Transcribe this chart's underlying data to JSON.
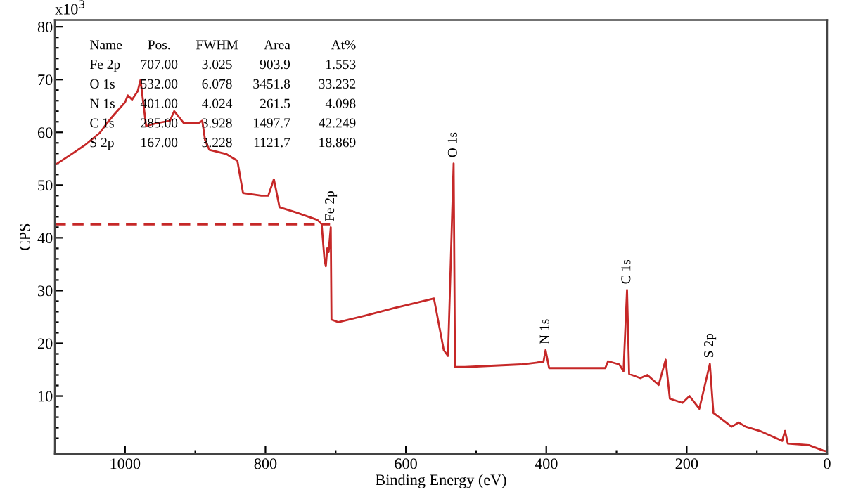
{
  "chart_data": {
    "type": "line",
    "xlabel": "Binding Energy (eV)",
    "ylabel": "CPS",
    "xlim": [
      1100,
      0
    ],
    "xticks": [
      1000,
      800,
      600,
      400,
      200,
      0
    ],
    "ylim": [
      -1,
      81.3
    ],
    "yticks": [
      10,
      20,
      30,
      40,
      50,
      60,
      70,
      80
    ],
    "grid": false,
    "legend": false,
    "marker": "none",
    "series": [
      {
        "color": "#c62828",
        "line_style": "solid",
        "x": [
          1100,
          1076,
          1056,
          1036,
          1026,
          1016,
          1000,
          996,
          990,
          982,
          978,
          970,
          956,
          936,
          930,
          916,
          896,
          890,
          886,
          880,
          856,
          840,
          832,
          806,
          796,
          788,
          780,
          756,
          726,
          720,
          716,
          714,
          712,
          710,
          707,
          706,
          696,
          656,
          616,
          600,
          560,
          546,
          540,
          532,
          530,
          516,
          436,
          404,
          401,
          396,
          316,
          312,
          296,
          290,
          285,
          282,
          266,
          256,
          240,
          230,
          224,
          206,
          196,
          182,
          167,
          162,
          136,
          126,
          116,
          96,
          64,
          60,
          56,
          26,
          6,
          0
        ],
        "values": [
          53.8,
          55.9,
          57.7,
          59.9,
          61.7,
          63.3,
          65.7,
          67,
          66.2,
          67.8,
          69.9,
          61.2,
          61.7,
          62.2,
          64,
          61.7,
          61.7,
          62.2,
          58.5,
          56.7,
          55.9,
          54.6,
          48.5,
          48,
          48,
          51.1,
          45.8,
          44.8,
          43.4,
          42.6,
          36,
          34.6,
          38,
          37.3,
          42,
          24.5,
          24,
          25.3,
          26.7,
          27.2,
          28.5,
          18.7,
          17.6,
          54.1,
          15.5,
          15.5,
          16,
          16.5,
          18.7,
          15.3,
          15.3,
          16.6,
          16,
          14.7,
          30.1,
          14.2,
          13.4,
          14,
          12.1,
          16.9,
          9.5,
          8.7,
          10,
          7.6,
          16.1,
          6.8,
          4.2,
          5,
          4.2,
          3.4,
          1.5,
          3.4,
          1,
          0.7,
          -0.3,
          -0.5
        ]
      },
      {
        "color": "#c62828",
        "line_style": "dashed",
        "x": [
          1100,
          708
        ],
        "values": [
          42.6,
          42.6
        ]
      }
    ],
    "annotations": [
      "x10$^{3}$",
      "Name",
      "Pos.",
      "FWHM",
      "Area",
      "At%",
      "Fe 2p",
      "707.00",
      "3.025",
      "903.9",
      "1.553",
      "O 1s",
      "532.00",
      "6.078",
      "3451.8",
      "33.232",
      "N 1s",
      "401.00",
      "4.024",
      "261.5",
      "4.098",
      "C 1s",
      "285.00",
      "3.928",
      "1497.7",
      "42.249",
      "S 2p",
      "167.00",
      "3.228",
      "1121.7",
      "18.869",
      {
        "text": "Fe 2p",
        "x": 707,
        "y": 42
      },
      {
        "text": "O 1s",
        "x": 532,
        "y": 54.1
      },
      {
        "text": "N 1s",
        "x": 401,
        "y": 18.7
      },
      {
        "text": "C 1s",
        "x": 285,
        "y": 30.1
      },
      {
        "text": "S 2p",
        "x": 167,
        "y": 16.1
      }
    ]
  }
}
